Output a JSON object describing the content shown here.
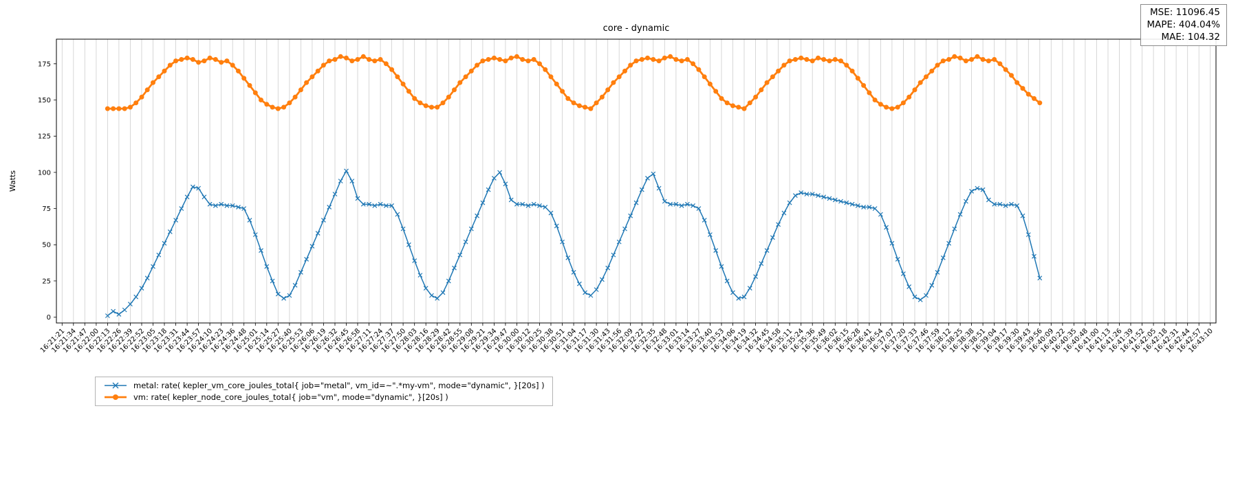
{
  "stats": {
    "mse": "MSE: 11096.45",
    "mape": "MAPE: 404.04%",
    "mae": "MAE: 104.32"
  },
  "chart_data": {
    "type": "line",
    "title": "core - dynamic",
    "xlabel": "",
    "ylabel": "Watts",
    "y_ticks": [
      0,
      25,
      50,
      75,
      100,
      125,
      150,
      175
    ],
    "ylim": [
      -4,
      192
    ],
    "grid": "vertical-only",
    "legend_position": "lower-left-outside",
    "x_tick_labels": [
      "16:21:21",
      "16:21:34",
      "16:21:47",
      "16:22:00",
      "16:22:13",
      "16:22:26",
      "16:22:39",
      "16:22:52",
      "16:23:05",
      "16:23:18",
      "16:23:31",
      "16:23:44",
      "16:23:57",
      "16:24:10",
      "16:24:23",
      "16:24:36",
      "16:24:48",
      "16:25:01",
      "16:25:14",
      "16:25:27",
      "16:25:40",
      "16:25:53",
      "16:26:06",
      "16:26:19",
      "16:26:32",
      "16:26:45",
      "16:26:58",
      "16:27:11",
      "16:27:24",
      "16:27:37",
      "16:27:50",
      "16:28:03",
      "16:28:16",
      "16:28:29",
      "16:28:42",
      "16:28:55",
      "16:29:08",
      "16:29:21",
      "16:29:34",
      "16:29:47",
      "16:30:00",
      "16:30:12",
      "16:30:25",
      "16:30:38",
      "16:30:51",
      "16:31:04",
      "16:31:17",
      "16:31:30",
      "16:31:43",
      "16:31:56",
      "16:32:09",
      "16:32:22",
      "16:32:35",
      "16:32:48",
      "16:33:01",
      "16:33:14",
      "16:33:27",
      "16:33:40",
      "16:33:53",
      "16:34:06",
      "16:34:19",
      "16:34:32",
      "16:34:45",
      "16:34:58",
      "16:35:11",
      "16:35:24",
      "16:35:36",
      "16:35:49",
      "16:36:02",
      "16:36:15",
      "16:36:28",
      "16:36:41",
      "16:36:54",
      "16:37:07",
      "16:37:20",
      "16:37:33",
      "16:37:46",
      "16:37:59",
      "16:38:12",
      "16:38:25",
      "16:38:38",
      "16:38:51",
      "16:39:04",
      "16:39:17",
      "16:39:30",
      "16:39:43",
      "16:39:56",
      "16:40:09",
      "16:40:22",
      "16:40:35",
      "16:40:48",
      "16:41:00",
      "16:41:13",
      "16:41:26",
      "16:41:39",
      "16:41:52",
      "16:42:05",
      "16:42:18",
      "16:42:31",
      "16:42:44",
      "16:42:57",
      "16:43:10"
    ],
    "series": [
      {
        "name": "metal: rate( kepler_vm_core_joules_total{ job=\"metal\", vm_id=~\".*my-vm\", mode=\"dynamic\", }[20s] )",
        "color": "#1f77b4",
        "marker": "x",
        "x_start_tick": 4,
        "x_step_ticks": 0.5,
        "values": [
          1,
          4,
          2,
          5,
          9,
          14,
          20,
          27,
          35,
          43,
          51,
          59,
          67,
          75,
          83,
          90,
          89,
          83,
          78,
          77,
          78,
          77,
          77,
          76,
          75,
          67,
          57,
          46,
          35,
          25,
          16,
          13,
          15,
          22,
          31,
          40,
          49,
          58,
          67,
          76,
          85,
          94,
          101,
          94,
          82,
          78,
          78,
          77,
          78,
          77,
          77,
          71,
          61,
          50,
          39,
          29,
          20,
          15,
          13,
          17,
          25,
          34,
          43,
          52,
          61,
          70,
          79,
          88,
          96,
          100,
          92,
          81,
          78,
          78,
          77,
          78,
          77,
          76,
          72,
          63,
          52,
          41,
          31,
          23,
          17,
          15,
          19,
          26,
          34,
          43,
          52,
          61,
          70,
          79,
          88,
          96,
          99,
          89,
          80,
          78,
          78,
          77,
          78,
          77,
          75,
          67,
          57,
          46,
          35,
          25,
          17,
          13,
          14,
          20,
          28,
          37,
          46,
          55,
          64,
          72,
          79,
          84,
          86,
          85,
          85,
          84,
          83,
          82,
          81,
          80,
          79,
          78,
          77,
          76,
          76,
          75,
          71,
          62,
          51,
          40,
          30,
          21,
          14,
          12,
          15,
          22,
          31,
          41,
          51,
          61,
          71,
          80,
          87,
          89,
          88,
          81,
          78,
          78,
          77,
          78,
          77,
          70,
          57,
          42,
          27
        ]
      },
      {
        "name": "vm: rate( kepler_node_core_joules_total{ job=\"vm\", mode=\"dynamic\", }[20s] )",
        "color": "#ff7f0e",
        "marker": "circle",
        "x_start_tick": 4,
        "x_step_ticks": 0.5,
        "values": [
          144,
          144,
          144,
          144,
          145,
          148,
          152,
          157,
          162,
          166,
          170,
          174,
          177,
          178,
          179,
          178,
          176,
          177,
          179,
          178,
          176,
          177,
          174,
          170,
          165,
          160,
          155,
          150,
          147,
          145,
          144,
          145,
          148,
          152,
          157,
          162,
          166,
          170,
          174,
          177,
          178,
          180,
          179,
          177,
          178,
          180,
          178,
          177,
          178,
          175,
          171,
          166,
          161,
          156,
          151,
          148,
          146,
          145,
          145,
          148,
          152,
          157,
          162,
          166,
          170,
          174,
          177,
          178,
          179,
          178,
          177,
          179,
          180,
          178,
          177,
          178,
          175,
          171,
          166,
          161,
          156,
          151,
          148,
          146,
          145,
          144,
          148,
          152,
          157,
          162,
          166,
          170,
          174,
          177,
          178,
          179,
          178,
          177,
          179,
          180,
          178,
          177,
          178,
          175,
          171,
          166,
          161,
          156,
          151,
          148,
          146,
          145,
          144,
          148,
          152,
          157,
          162,
          166,
          170,
          174,
          177,
          178,
          179,
          178,
          177,
          179,
          178,
          177,
          178,
          177,
          174,
          170,
          165,
          160,
          155,
          150,
          147,
          145,
          144,
          145,
          148,
          152,
          157,
          162,
          166,
          170,
          174,
          177,
          178,
          180,
          179,
          177,
          178,
          180,
          178,
          177,
          178,
          175,
          171,
          167,
          162,
          158,
          154,
          151,
          148
        ]
      }
    ]
  }
}
